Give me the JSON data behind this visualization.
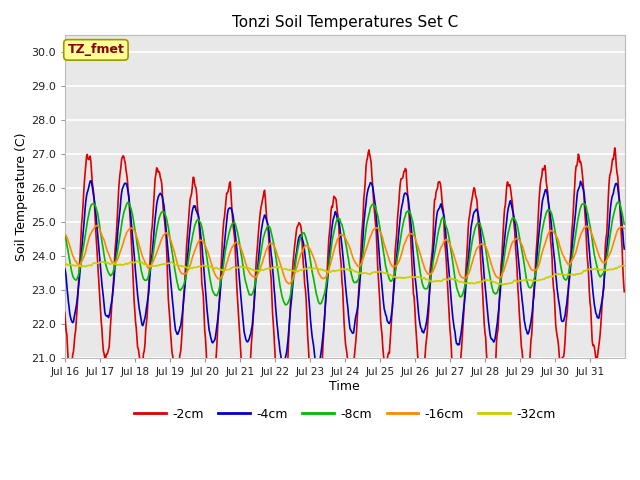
{
  "title": "Tonzi Soil Temperatures Set C",
  "xlabel": "Time",
  "ylabel": "Soil Temperature (C)",
  "ylim": [
    21.0,
    30.5
  ],
  "yticks": [
    21.0,
    22.0,
    23.0,
    24.0,
    25.0,
    26.0,
    27.0,
    28.0,
    29.0,
    30.0
  ],
  "series_colors": [
    "#dd0000",
    "#0000cc",
    "#00bb00",
    "#ff8800",
    "#cccc00"
  ],
  "series_labels": [
    "-2cm",
    "-4cm",
    "-8cm",
    "-16cm",
    "-32cm"
  ],
  "annotation_text": "TZ_fmet",
  "annotation_box_facecolor": "#ffff99",
  "annotation_box_edgecolor": "#999900",
  "plot_bg": "#e8e8e8",
  "fig_bg": "#ffffff",
  "grid_color": "#ffffff",
  "n_days": 16,
  "points_per_day": 48
}
